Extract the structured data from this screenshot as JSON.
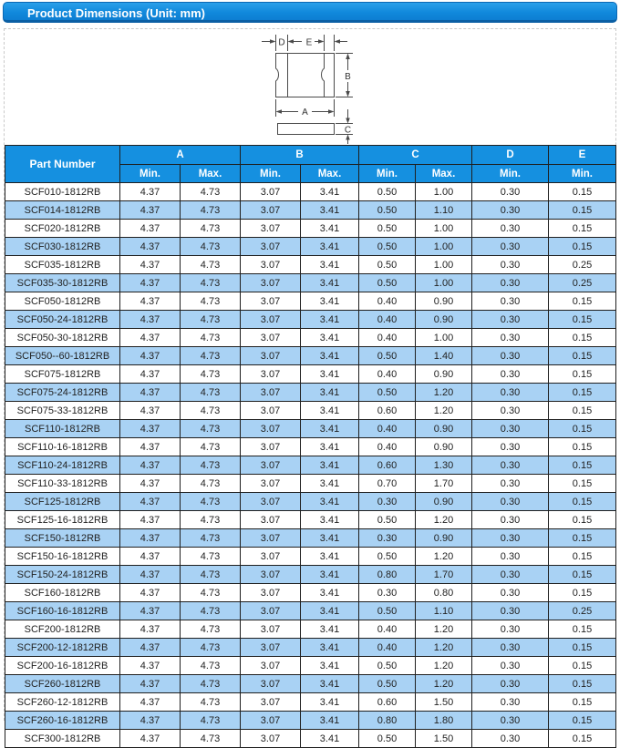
{
  "header_bar": {
    "title": "Product Dimensions (Unit: mm)"
  },
  "colors": {
    "title_bar_blue": "#1189dc",
    "table_header_blue": "#1590e0",
    "alt_row_blue": "#a9d2f4",
    "grid_border": "#1f1f1f"
  },
  "diagram": {
    "type": "technical-drawing",
    "views": [
      "top-view",
      "side-view"
    ],
    "labels": {
      "d": "D",
      "e": "E",
      "b": "B",
      "a": "A",
      "c": "C"
    }
  },
  "table": {
    "part_number_header": "Part Number",
    "groups": [
      {
        "label": "A",
        "subs": [
          "Min.",
          "Max."
        ]
      },
      {
        "label": "B",
        "subs": [
          "Min.",
          "Max."
        ]
      },
      {
        "label": "C",
        "subs": [
          "Min.",
          "Max."
        ]
      },
      {
        "label": "D",
        "subs": [
          "Min."
        ]
      },
      {
        "label": "E",
        "subs": [
          "Min."
        ]
      }
    ],
    "rows": [
      {
        "part": "SCF010-1812RB",
        "values": [
          "4.37",
          "4.73",
          "3.07",
          "3.41",
          "0.50",
          "1.00",
          "0.30",
          "0.15"
        ]
      },
      {
        "part": "SCF014-1812RB",
        "values": [
          "4.37",
          "4.73",
          "3.07",
          "3.41",
          "0.50",
          "1.10",
          "0.30",
          "0.15"
        ]
      },
      {
        "part": "SCF020-1812RB",
        "values": [
          "4.37",
          "4.73",
          "3.07",
          "3.41",
          "0.50",
          "1.00",
          "0.30",
          "0.15"
        ]
      },
      {
        "part": "SCF030-1812RB",
        "values": [
          "4.37",
          "4.73",
          "3.07",
          "3.41",
          "0.50",
          "1.00",
          "0.30",
          "0.15"
        ]
      },
      {
        "part": "SCF035-1812RB",
        "values": [
          "4.37",
          "4.73",
          "3.07",
          "3.41",
          "0.50",
          "1.00",
          "0.30",
          "0.25"
        ]
      },
      {
        "part": "SCF035-30-1812RB",
        "values": [
          "4.37",
          "4.73",
          "3.07",
          "3.41",
          "0.50",
          "1.00",
          "0.30",
          "0.25"
        ]
      },
      {
        "part": "SCF050-1812RB",
        "values": [
          "4.37",
          "4.73",
          "3.07",
          "3.41",
          "0.40",
          "0.90",
          "0.30",
          "0.15"
        ]
      },
      {
        "part": "SCF050-24-1812RB",
        "values": [
          "4.37",
          "4.73",
          "3.07",
          "3.41",
          "0.40",
          "0.90",
          "0.30",
          "0.15"
        ]
      },
      {
        "part": "SCF050-30-1812RB",
        "values": [
          "4.37",
          "4.73",
          "3.07",
          "3.41",
          "0.40",
          "1.00",
          "0.30",
          "0.15"
        ]
      },
      {
        "part": "SCF050--60-1812RB",
        "values": [
          "4.37",
          "4.73",
          "3.07",
          "3.41",
          "0.50",
          "1.40",
          "0.30",
          "0.15"
        ]
      },
      {
        "part": "SCF075-1812RB",
        "values": [
          "4.37",
          "4.73",
          "3.07",
          "3.41",
          "0.40",
          "0.90",
          "0.30",
          "0.15"
        ]
      },
      {
        "part": "SCF075-24-1812RB",
        "values": [
          "4.37",
          "4.73",
          "3.07",
          "3.41",
          "0.50",
          "1.20",
          "0.30",
          "0.15"
        ]
      },
      {
        "part": "SCF075-33-1812RB",
        "values": [
          "4.37",
          "4.73",
          "3.07",
          "3.41",
          "0.60",
          "1.20",
          "0.30",
          "0.15"
        ]
      },
      {
        "part": "SCF110-1812RB",
        "values": [
          "4.37",
          "4.73",
          "3.07",
          "3.41",
          "0.40",
          "0.90",
          "0.30",
          "0.15"
        ]
      },
      {
        "part": "SCF110-16-1812RB",
        "values": [
          "4.37",
          "4.73",
          "3.07",
          "3.41",
          "0.40",
          "0.90",
          "0.30",
          "0.15"
        ]
      },
      {
        "part": "SCF110-24-1812RB",
        "values": [
          "4.37",
          "4.73",
          "3.07",
          "3.41",
          "0.60",
          "1.30",
          "0.30",
          "0.15"
        ]
      },
      {
        "part": "SCF110-33-1812RB",
        "values": [
          "4.37",
          "4.73",
          "3.07",
          "3.41",
          "0.70",
          "1.70",
          "0.30",
          "0.15"
        ]
      },
      {
        "part": "SCF125-1812RB",
        "values": [
          "4.37",
          "4.73",
          "3.07",
          "3.41",
          "0.30",
          "0.90",
          "0.30",
          "0.15"
        ]
      },
      {
        "part": "SCF125-16-1812RB",
        "values": [
          "4.37",
          "4.73",
          "3.07",
          "3.41",
          "0.50",
          "1.20",
          "0.30",
          "0.15"
        ]
      },
      {
        "part": "SCF150-1812RB",
        "values": [
          "4.37",
          "4.73",
          "3.07",
          "3.41",
          "0.30",
          "0.90",
          "0.30",
          "0.15"
        ]
      },
      {
        "part": "SCF150-16-1812RB",
        "values": [
          "4.37",
          "4.73",
          "3.07",
          "3.41",
          "0.50",
          "1.20",
          "0.30",
          "0.15"
        ]
      },
      {
        "part": "SCF150-24-1812RB",
        "values": [
          "4.37",
          "4.73",
          "3.07",
          "3.41",
          "0.80",
          "1.70",
          "0.30",
          "0.15"
        ]
      },
      {
        "part": "SCF160-1812RB",
        "values": [
          "4.37",
          "4.73",
          "3.07",
          "3.41",
          "0.30",
          "0.80",
          "0.30",
          "0.15"
        ]
      },
      {
        "part": "SCF160-16-1812RB",
        "values": [
          "4.37",
          "4.73",
          "3.07",
          "3.41",
          "0.50",
          "1.10",
          "0.30",
          "0.25"
        ]
      },
      {
        "part": "SCF200-1812RB",
        "values": [
          "4.37",
          "4.73",
          "3.07",
          "3.41",
          "0.40",
          "1.20",
          "0.30",
          "0.15"
        ]
      },
      {
        "part": "SCF200-12-1812RB",
        "values": [
          "4.37",
          "4.73",
          "3.07",
          "3.41",
          "0.40",
          "1.20",
          "0.30",
          "0.15"
        ]
      },
      {
        "part": "SCF200-16-1812RB",
        "values": [
          "4.37",
          "4.73",
          "3.07",
          "3.41",
          "0.50",
          "1.20",
          "0.30",
          "0.15"
        ]
      },
      {
        "part": "SCF260-1812RB",
        "values": [
          "4.37",
          "4.73",
          "3.07",
          "3.41",
          "0.50",
          "1.20",
          "0.30",
          "0.15"
        ]
      },
      {
        "part": "SCF260-12-1812RB",
        "values": [
          "4.37",
          "4.73",
          "3.07",
          "3.41",
          "0.60",
          "1.50",
          "0.30",
          "0.15"
        ]
      },
      {
        "part": "SCF260-16-1812RB",
        "values": [
          "4.37",
          "4.73",
          "3.07",
          "3.41",
          "0.80",
          "1.80",
          "0.30",
          "0.15"
        ]
      },
      {
        "part": "SCF300-1812RB",
        "values": [
          "4.37",
          "4.73",
          "3.07",
          "3.41",
          "0.50",
          "1.50",
          "0.30",
          "0.15"
        ]
      }
    ]
  }
}
